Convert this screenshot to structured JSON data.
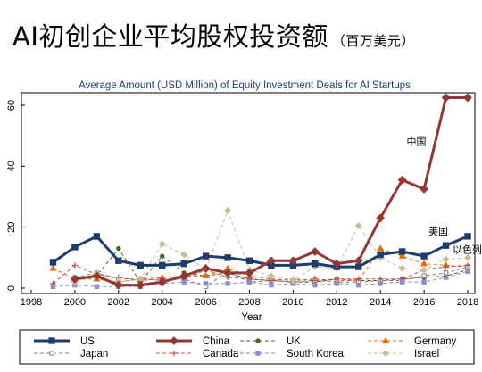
{
  "header": {
    "title": "AI初创企业平均股权投资额",
    "unit": "（百万美元）"
  },
  "chart_data": {
    "type": "line",
    "title": "Average Amount (USD Million) of Equity Investment Deals for AI Startups",
    "xlabel": "Year",
    "ylabel": "",
    "xlim": [
      1998,
      2018
    ],
    "ylim": [
      0,
      62
    ],
    "x_ticks": [
      1998,
      2000,
      2002,
      2004,
      2006,
      2008,
      2010,
      2012,
      2014,
      2016,
      2018
    ],
    "y_ticks": [
      0,
      20,
      40,
      60
    ],
    "grid": false,
    "legend_position": "bottom",
    "x": [
      1999,
      2000,
      2001,
      2002,
      2003,
      2004,
      2005,
      2006,
      2007,
      2008,
      2009,
      2010,
      2011,
      2012,
      2013,
      2014,
      2015,
      2016,
      2017,
      2018
    ],
    "series": [
      {
        "name": "US",
        "color": "#1f3d6b",
        "style": "solid-bold",
        "marker": "square",
        "values": [
          8.5,
          13.5,
          17,
          9,
          7.5,
          7.5,
          8,
          10.5,
          10,
          9,
          7.5,
          7.5,
          8,
          7,
          7,
          11,
          12,
          10.5,
          14,
          17
        ]
      },
      {
        "name": "China",
        "color": "#943634",
        "style": "solid-bold",
        "marker": "diamond",
        "values": [
          null,
          3,
          4,
          1,
          1,
          2,
          4,
          6.5,
          5,
          5,
          9,
          9,
          12,
          8,
          9,
          23,
          35.5,
          32.5,
          62.5,
          62.5
        ]
      },
      {
        "name": "UK",
        "color": "#4f6228",
        "style": "dashed",
        "marker": "circle",
        "values": [
          null,
          2.5,
          4,
          13,
          2,
          10.5,
          5,
          4,
          5,
          3,
          2.5,
          2,
          2,
          3,
          2.5,
          2.5,
          3,
          3.5,
          4,
          6
        ]
      },
      {
        "name": "Germany",
        "color": "#e36c09",
        "style": "dashed",
        "marker": "triangle",
        "values": [
          6.5,
          3,
          3,
          2,
          3,
          3.5,
          4,
          4,
          6.5,
          4,
          3,
          2.5,
          3,
          2.5,
          2.5,
          13,
          10.5,
          8,
          7.5,
          7
        ]
      },
      {
        "name": "Japan",
        "color": "#7f7f7f",
        "style": "dashed",
        "marker": "square-open",
        "values": [
          null,
          3.5,
          5,
          3,
          3,
          2.5,
          3,
          0.5,
          5.5,
          2,
          2.5,
          2,
          2.5,
          2,
          2,
          2.5,
          2.5,
          4,
          5,
          7
        ]
      },
      {
        "name": "Canada",
        "color": "#c0504d",
        "style": "dashed",
        "marker": "plus",
        "values": [
          1.5,
          7.5,
          4.5,
          3.5,
          2.5,
          3,
          3,
          6,
          3.5,
          3,
          2.5,
          3,
          2.5,
          3,
          3,
          3,
          3,
          6,
          7,
          7.5
        ]
      },
      {
        "name": "South Korea",
        "color": "#8e8ad0",
        "style": "dashed",
        "marker": "square",
        "values": [
          0.5,
          1,
          0.5,
          0.5,
          0.5,
          1.5,
          2,
          1.5,
          1.5,
          2,
          1,
          1.5,
          1,
          1.5,
          1,
          1.5,
          2,
          2,
          3.5,
          5.5
        ]
      },
      {
        "name": "Israel",
        "color": "#c4bd97",
        "style": "dashed",
        "marker": "diamond",
        "values": [
          null,
          2,
          5,
          2,
          3,
          14.5,
          11,
          6,
          25.5,
          6,
          4,
          2.5,
          7,
          6.5,
          20.5,
          10,
          6.5,
          6,
          9.5,
          10
        ]
      }
    ],
    "annotations": [
      {
        "text": "中国",
        "x": 2015.2,
        "y": 47,
        "color": "#000000"
      },
      {
        "text": "美国",
        "x": 2016.2,
        "y": 17.5,
        "color": "#000000"
      },
      {
        "text": "以色列",
        "x": 2017.3,
        "y": 11.5,
        "color": "#000000"
      }
    ]
  }
}
